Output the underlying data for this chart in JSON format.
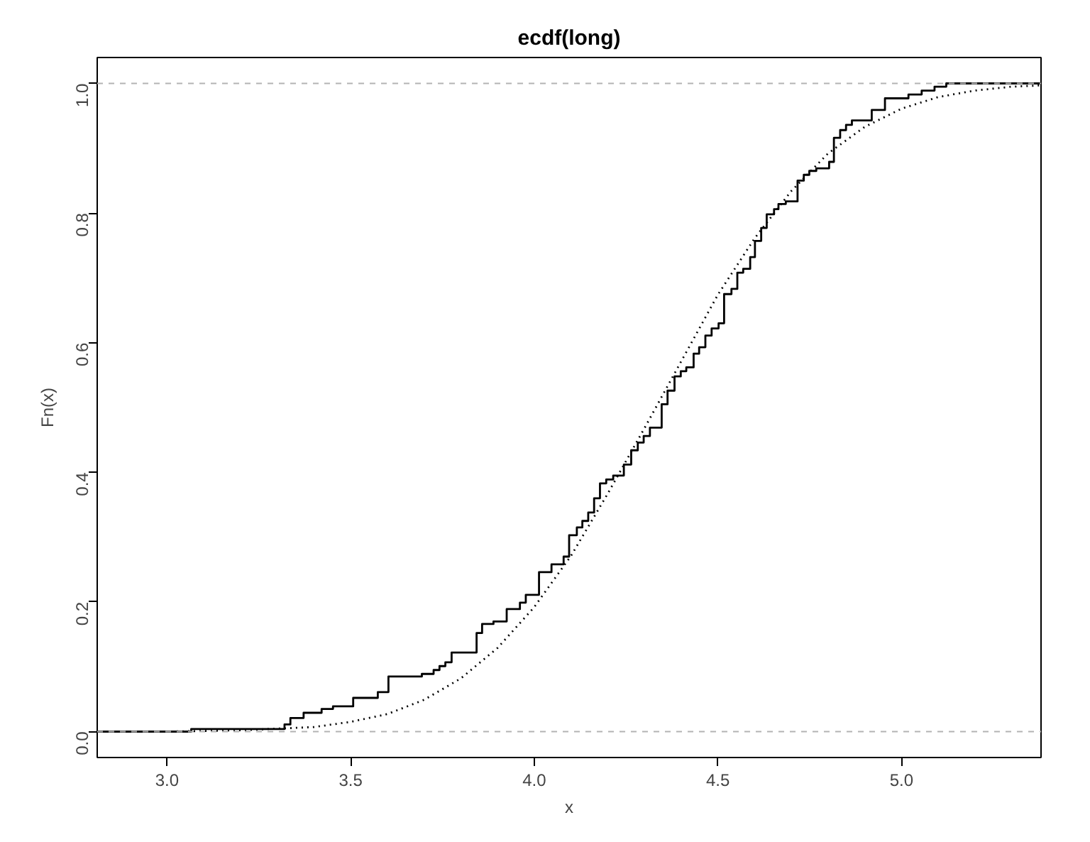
{
  "chart_data": {
    "type": "step",
    "title": "ecdf(long)",
    "xlabel": "x",
    "ylabel": "Fn(x)",
    "xlim": [
      2.81,
      5.38
    ],
    "ylim": [
      -0.04,
      1.04
    ],
    "xticks": [
      {
        "value": 3,
        "label": "3.0"
      },
      {
        "value": 3.5,
        "label": "3.5"
      },
      {
        "value": 4,
        "label": "4.0"
      },
      {
        "value": 4.5,
        "label": "4.5"
      },
      {
        "value": 5,
        "label": "5.0"
      }
    ],
    "yticks": [
      {
        "value": 0,
        "label": "0.0"
      },
      {
        "value": 0.2,
        "label": "0.2"
      },
      {
        "value": 0.4,
        "label": "0.4"
      },
      {
        "value": 0.6,
        "label": "0.6"
      },
      {
        "value": 0.8,
        "label": "0.8"
      },
      {
        "value": 1,
        "label": "1.0"
      }
    ],
    "grid": false,
    "ref_lines": [
      {
        "axis": "y",
        "value": 0,
        "color": "#b3b3b3",
        "line_style": "dashed"
      },
      {
        "axis": "y",
        "value": 1,
        "color": "#b3b3b3",
        "line_style": "dashed"
      }
    ],
    "series": [
      {
        "color": "#000000",
        "line_style": "solid",
        "x": [
          2.81,
          3.066,
          3.32,
          3.336,
          3.372,
          3.421,
          3.452,
          3.507,
          3.574,
          3.603,
          3.694,
          3.726,
          3.742,
          3.758,
          3.775,
          3.843,
          3.858,
          3.889,
          3.925,
          3.961,
          3.977,
          4.013,
          4.047,
          4.08,
          4.095,
          4.116,
          4.131,
          4.147,
          4.163,
          4.179,
          4.196,
          4.215,
          4.244,
          4.264,
          4.282,
          4.298,
          4.315,
          4.347,
          4.363,
          4.382,
          4.399,
          4.414,
          4.434,
          4.449,
          4.466,
          4.483,
          4.502,
          4.517,
          4.537,
          4.553,
          4.569,
          4.588,
          4.601,
          4.618,
          4.633,
          4.653,
          4.665,
          4.685,
          4.717,
          4.734,
          4.749,
          4.768,
          4.803,
          4.816,
          4.833,
          4.849,
          4.865,
          4.919,
          4.955,
          5.019,
          5.055,
          5.09,
          5.122,
          5.38
        ],
        "values": [
          0,
          0.004,
          0.011,
          0.021,
          0.029,
          0.035,
          0.039,
          0.052,
          0.061,
          0.085,
          0.089,
          0.095,
          0.101,
          0.107,
          0.122,
          0.152,
          0.166,
          0.17,
          0.189,
          0.199,
          0.211,
          0.246,
          0.258,
          0.27,
          0.303,
          0.315,
          0.325,
          0.338,
          0.36,
          0.383,
          0.389,
          0.395,
          0.412,
          0.434,
          0.446,
          0.456,
          0.469,
          0.505,
          0.526,
          0.548,
          0.556,
          0.562,
          0.583,
          0.593,
          0.611,
          0.622,
          0.63,
          0.675,
          0.683,
          0.708,
          0.714,
          0.732,
          0.757,
          0.777,
          0.798,
          0.806,
          0.814,
          0.818,
          0.85,
          0.859,
          0.865,
          0.869,
          0.879,
          0.916,
          0.928,
          0.936,
          0.943,
          0.959,
          0.977,
          0.983,
          0.989,
          0.995,
          1.0,
          1.0
        ]
      },
      {
        "type": "line",
        "color": "#000000",
        "line_style": "dotted",
        "x": [
          2.81,
          3.0,
          3.2,
          3.4,
          3.5,
          3.6,
          3.7,
          3.8,
          3.9,
          4.0,
          4.1,
          4.2,
          4.3,
          4.4,
          4.5,
          4.6,
          4.7,
          4.8,
          4.9,
          5.0,
          5.1,
          5.2,
          5.3,
          5.38
        ],
        "values": [
          0,
          0,
          0.002,
          0.007,
          0.015,
          0.027,
          0.049,
          0.082,
          0.129,
          0.192,
          0.271,
          0.367,
          0.468,
          0.571,
          0.674,
          0.761,
          0.834,
          0.892,
          0.933,
          0.961,
          0.979,
          0.989,
          0.995,
          0.997
        ]
      }
    ]
  }
}
